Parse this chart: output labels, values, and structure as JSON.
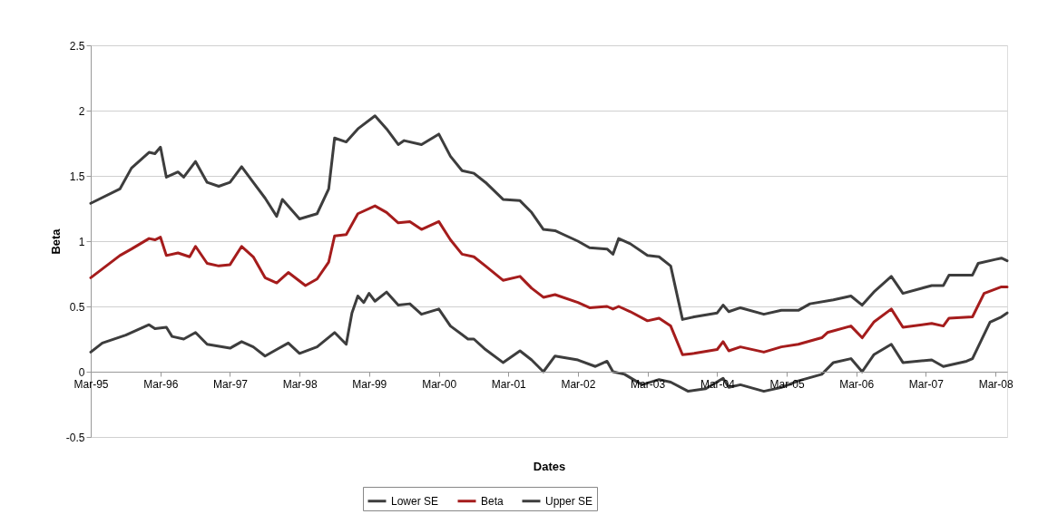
{
  "chart_data": {
    "type": "line",
    "xlabel": "Dates",
    "ylabel": "Beta",
    "xlim": [
      "1995-03",
      "2008-05"
    ],
    "xticks": [
      {
        "value": "1995-03",
        "label": "Mar-95"
      },
      {
        "value": "1996-03",
        "label": "Mar-96"
      },
      {
        "value": "1997-03",
        "label": "Mar-97"
      },
      {
        "value": "1998-03",
        "label": "Mar-98"
      },
      {
        "value": "1999-03",
        "label": "Mar-99"
      },
      {
        "value": "2000-03",
        "label": "Mar-00"
      },
      {
        "value": "2001-03",
        "label": "Mar-01"
      },
      {
        "value": "2002-03",
        "label": "Mar-02"
      },
      {
        "value": "2003-03",
        "label": "Mar-03"
      },
      {
        "value": "2004-03",
        "label": "Mar-04"
      },
      {
        "value": "2005-03",
        "label": "Mar-05"
      },
      {
        "value": "2006-03",
        "label": "Mar-06"
      },
      {
        "value": "2007-03",
        "label": "Mar-07"
      },
      {
        "value": "2008-03",
        "label": "Mar-08"
      }
    ],
    "ylim": [
      -0.5,
      2.5
    ],
    "yticks": [
      -0.5,
      0,
      0.5,
      1,
      1.5,
      2,
      2.5
    ],
    "grid": "y",
    "legend": "bottom",
    "marker": "none",
    "line_style": "solid",
    "series": [
      {
        "name": "Lower SE",
        "color": "#3d3d3d",
        "x": [
          "1995-03",
          "1995-05",
          "1995-09",
          "1995-11",
          "1996-01",
          "1996-02",
          "1996-04",
          "1996-05",
          "1996-07",
          "1996-09",
          "1996-11",
          "1997-03",
          "1997-05",
          "1997-07",
          "1997-09",
          "1997-11",
          "1998-01",
          "1998-03",
          "1998-06",
          "1998-09",
          "1998-11",
          "1998-12",
          "1999-01",
          "1999-02",
          "1999-03",
          "1999-04",
          "1999-06",
          "1999-08",
          "1999-10",
          "1999-12",
          "2000-03",
          "2000-05",
          "2000-08",
          "2000-09",
          "2000-11",
          "2001-02",
          "2001-05",
          "2001-07",
          "2001-09",
          "2001-11",
          "2002-03",
          "2002-06",
          "2002-08",
          "2002-09",
          "2002-11",
          "2003-02",
          "2003-05",
          "2003-07",
          "2003-10",
          "2004-01",
          "2004-04",
          "2004-05",
          "2004-07",
          "2004-11",
          "2005-02",
          "2005-05",
          "2005-09",
          "2005-11",
          "2006-02",
          "2006-04",
          "2006-06",
          "2006-09",
          "2006-11",
          "2007-04",
          "2007-06",
          "2007-10",
          "2007-11",
          "2008-02",
          "2008-04",
          "2008-05"
        ],
        "values": [
          0.15,
          0.22,
          0.28,
          0.32,
          0.36,
          0.33,
          0.34,
          0.27,
          0.25,
          0.3,
          0.21,
          0.18,
          0.23,
          0.19,
          0.12,
          0.17,
          0.22,
          0.14,
          0.19,
          0.3,
          0.21,
          0.45,
          0.58,
          0.53,
          0.6,
          0.54,
          0.61,
          0.51,
          0.52,
          0.44,
          0.48,
          0.35,
          0.25,
          0.25,
          0.17,
          0.07,
          0.16,
          0.09,
          0.0,
          0.12,
          0.09,
          0.04,
          0.08,
          0.0,
          -0.02,
          -0.1,
          -0.06,
          -0.08,
          -0.15,
          -0.13,
          -0.05,
          -0.12,
          -0.1,
          -0.15,
          -0.12,
          -0.07,
          -0.02,
          0.07,
          0.1,
          0.0,
          0.13,
          0.21,
          0.07,
          0.09,
          0.04,
          0.08,
          0.1,
          0.38,
          0.42,
          0.45
        ]
      },
      {
        "name": "Beta",
        "color": "#a51c1c",
        "x": [
          "1995-03",
          "1995-08",
          "1995-10",
          "1996-01",
          "1996-02",
          "1996-03",
          "1996-04",
          "1996-06",
          "1996-08",
          "1996-09",
          "1996-11",
          "1997-01",
          "1997-03",
          "1997-05",
          "1997-07",
          "1997-09",
          "1997-11",
          "1998-01",
          "1998-04",
          "1998-06",
          "1998-08",
          "1998-09",
          "1998-11",
          "1999-01",
          "1999-04",
          "1999-06",
          "1999-08",
          "1999-10",
          "1999-12",
          "2000-03",
          "2000-05",
          "2000-07",
          "2000-09",
          "2000-11",
          "2001-02",
          "2001-05",
          "2001-07",
          "2001-09",
          "2001-11",
          "2002-03",
          "2002-05",
          "2002-08",
          "2002-09",
          "2002-10",
          "2002-12",
          "2003-03",
          "2003-05",
          "2003-07",
          "2003-09",
          "2003-11",
          "2004-03",
          "2004-04",
          "2004-05",
          "2004-07",
          "2004-11",
          "2005-02",
          "2005-05",
          "2005-09",
          "2005-10",
          "2006-02",
          "2006-04",
          "2006-06",
          "2006-09",
          "2006-11",
          "2007-04",
          "2007-06",
          "2007-07",
          "2007-11",
          "2008-01",
          "2008-04",
          "2008-05"
        ],
        "values": [
          0.72,
          0.89,
          0.94,
          1.02,
          1.01,
          1.03,
          0.89,
          0.91,
          0.88,
          0.96,
          0.83,
          0.81,
          0.82,
          0.96,
          0.88,
          0.72,
          0.68,
          0.76,
          0.66,
          0.71,
          0.84,
          1.04,
          1.05,
          1.21,
          1.27,
          1.22,
          1.14,
          1.15,
          1.09,
          1.15,
          1.01,
          0.9,
          0.88,
          0.81,
          0.7,
          0.73,
          0.64,
          0.57,
          0.59,
          0.53,
          0.49,
          0.5,
          0.48,
          0.5,
          0.46,
          0.39,
          0.41,
          0.35,
          0.13,
          0.14,
          0.17,
          0.23,
          0.16,
          0.19,
          0.15,
          0.19,
          0.21,
          0.26,
          0.3,
          0.35,
          0.26,
          0.38,
          0.48,
          0.34,
          0.37,
          0.35,
          0.41,
          0.42,
          0.6,
          0.65,
          0.65
        ]
      },
      {
        "name": "Upper SE",
        "color": "#3d3d3d",
        "x": [
          "1995-03",
          "1995-08",
          "1995-10",
          "1996-01",
          "1996-02",
          "1996-03",
          "1996-04",
          "1996-06",
          "1996-07",
          "1996-09",
          "1996-11",
          "1997-01",
          "1997-03",
          "1997-05",
          "1997-07",
          "1997-09",
          "1997-11",
          "1997-12",
          "1998-03",
          "1998-06",
          "1998-08",
          "1998-09",
          "1998-11",
          "1999-01",
          "1999-04",
          "1999-06",
          "1999-08",
          "1999-09",
          "1999-12",
          "2000-03",
          "2000-05",
          "2000-07",
          "2000-09",
          "2000-11",
          "2001-02",
          "2001-05",
          "2001-07",
          "2001-09",
          "2001-11",
          "2002-03",
          "2002-05",
          "2002-08",
          "2002-09",
          "2002-10",
          "2002-12",
          "2003-03",
          "2003-05",
          "2003-07",
          "2003-09",
          "2003-11",
          "2004-03",
          "2004-04",
          "2004-05",
          "2004-07",
          "2004-11",
          "2005-02",
          "2005-05",
          "2005-07",
          "2005-11",
          "2006-02",
          "2006-04",
          "2006-06",
          "2006-09",
          "2006-11",
          "2007-04",
          "2007-06",
          "2007-07",
          "2007-11",
          "2007-12",
          "2008-03",
          "2008-04",
          "2008-05"
        ],
        "values": [
          1.29,
          1.4,
          1.56,
          1.68,
          1.67,
          1.72,
          1.49,
          1.53,
          1.49,
          1.61,
          1.45,
          1.42,
          1.45,
          1.57,
          1.45,
          1.33,
          1.19,
          1.32,
          1.17,
          1.21,
          1.4,
          1.79,
          1.76,
          1.86,
          1.96,
          1.86,
          1.74,
          1.77,
          1.74,
          1.82,
          1.65,
          1.54,
          1.52,
          1.45,
          1.32,
          1.31,
          1.22,
          1.09,
          1.08,
          1.0,
          0.95,
          0.94,
          0.9,
          1.02,
          0.98,
          0.89,
          0.88,
          0.81,
          0.4,
          0.42,
          0.45,
          0.51,
          0.46,
          0.49,
          0.44,
          0.47,
          0.47,
          0.52,
          0.55,
          0.58,
          0.51,
          0.61,
          0.73,
          0.6,
          0.66,
          0.66,
          0.74,
          0.74,
          0.83,
          0.86,
          0.87,
          0.85
        ]
      }
    ]
  }
}
